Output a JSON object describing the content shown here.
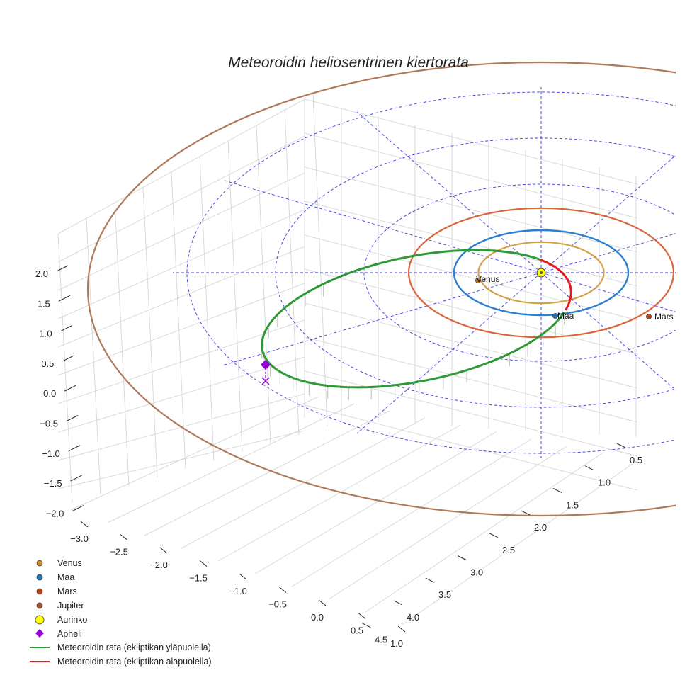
{
  "chart_data": {
    "type": "scatter",
    "title": "Meteoroidin heliosentrinen kiertorata",
    "x_ticks": [
      "−3.0",
      "−2.5",
      "−2.0",
      "−1.5",
      "−1.0",
      "−0.5",
      "0.0",
      "0.5",
      "1.0"
    ],
    "y_ticks": [
      "0.5",
      "1.0",
      "1.5",
      "2.0",
      "2.5",
      "3.0",
      "3.5",
      "4.0",
      "4.5"
    ],
    "z_ticks": [
      "2.0",
      "1.5",
      "1.0",
      "0.5",
      "0.0",
      "−0.5",
      "−1.0",
      "−1.5",
      "−2.0"
    ],
    "planet_labels": [
      "Venus",
      "Maa",
      "Mars"
    ],
    "legend": [
      {
        "label": "Venus",
        "color": "#c8862a",
        "marker": "circle"
      },
      {
        "label": "Maa",
        "color": "#1f77b4",
        "marker": "circle"
      },
      {
        "label": "Mars",
        "color": "#c1440e",
        "marker": "circle"
      },
      {
        "label": "Jupiter",
        "color": "#a0522d",
        "marker": "circle"
      },
      {
        "label": "Aurinko",
        "color": "#ffff00",
        "marker": "big-circle"
      },
      {
        "label": "Apheli",
        "color": "#9400d3",
        "marker": "diamond"
      },
      {
        "label": "Meteoroidin rata (ekliptikan yläpuolella)",
        "color": "#2ca02c",
        "marker": "line"
      },
      {
        "label": "Meteoroidin rata (ekliptikan alapuolella)",
        "color": "#e41a1c",
        "marker": "line"
      }
    ],
    "orbits": [
      {
        "name": "Venus",
        "radius_au": 0.72,
        "color": "#d4a04a"
      },
      {
        "name": "Maa",
        "radius_au": 1.0,
        "color": "#2a7fd0"
      },
      {
        "name": "Mars",
        "radius_au": 1.52,
        "color": "#d9653b"
      },
      {
        "name": "Jupiter",
        "radius_au": 5.2,
        "color": "#b07a5a"
      }
    ],
    "meteoroid": {
      "perihelion_au": 0.42,
      "aphelion_au": 3.0,
      "above_color": "#2e9a35",
      "below_color": "#e41a1c"
    },
    "ecliptic_grid_color": "#4a4ae8"
  }
}
